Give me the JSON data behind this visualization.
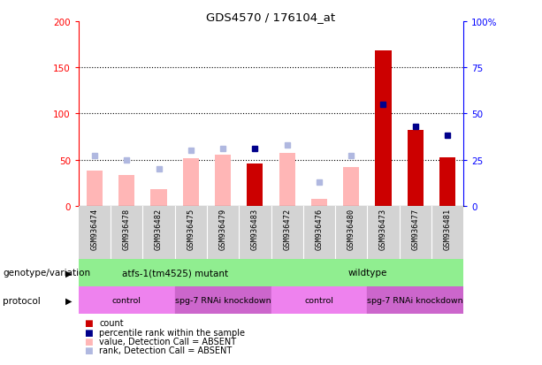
{
  "title": "GDS4570 / 176104_at",
  "samples": [
    "GSM936474",
    "GSM936478",
    "GSM936482",
    "GSM936475",
    "GSM936479",
    "GSM936483",
    "GSM936472",
    "GSM936476",
    "GSM936480",
    "GSM936473",
    "GSM936477",
    "GSM936481"
  ],
  "count_values": [
    null,
    null,
    null,
    null,
    null,
    46,
    null,
    null,
    null,
    168,
    82,
    53
  ],
  "value_bars": [
    38,
    33,
    18,
    52,
    55,
    null,
    57,
    8,
    42,
    null,
    null,
    null
  ],
  "rank_dots_absent": [
    27,
    25,
    20,
    30,
    31,
    null,
    33,
    13,
    27,
    null,
    null,
    null
  ],
  "rank_dots_present": [
    null,
    null,
    null,
    null,
    null,
    31,
    null,
    null,
    null,
    55,
    43,
    38
  ],
  "genotype_groups": [
    {
      "label": "atfs-1(tm4525) mutant",
      "start": 0,
      "end": 6,
      "color": "#90ee90"
    },
    {
      "label": "wildtype",
      "start": 6,
      "end": 12,
      "color": "#90ee90"
    }
  ],
  "protocol_groups": [
    {
      "label": "control",
      "start": 0,
      "end": 3,
      "color": "#ee82ee"
    },
    {
      "label": "spg-7 RNAi knockdown",
      "start": 3,
      "end": 6,
      "color": "#cc66cc"
    },
    {
      "label": "control",
      "start": 6,
      "end": 9,
      "color": "#ee82ee"
    },
    {
      "label": "spg-7 RNAi knockdown",
      "start": 9,
      "end": 12,
      "color": "#cc66cc"
    }
  ],
  "ylim_left": [
    0,
    200
  ],
  "ylim_right": [
    0,
    100
  ],
  "yticks_left": [
    0,
    50,
    100,
    150,
    200
  ],
  "yticks_right": [
    0,
    25,
    50,
    75,
    100
  ],
  "ytick_labels_left": [
    "0",
    "50",
    "100",
    "150",
    "200"
  ],
  "ytick_labels_right": [
    "0",
    "25",
    "50",
    "75",
    "100%"
  ],
  "color_count": "#cc0000",
  "color_count_absent": "#ffb6b6",
  "color_rank_absent": "#b0b8e0",
  "color_rank_present": "#00008b",
  "bg_color": "#d3d3d3",
  "legend_items": [
    {
      "color": "#cc0000",
      "label": "count"
    },
    {
      "color": "#00008b",
      "label": "percentile rank within the sample"
    },
    {
      "color": "#ffb6b6",
      "label": "value, Detection Call = ABSENT"
    },
    {
      "color": "#b0b8e0",
      "label": "rank, Detection Call = ABSENT"
    }
  ]
}
